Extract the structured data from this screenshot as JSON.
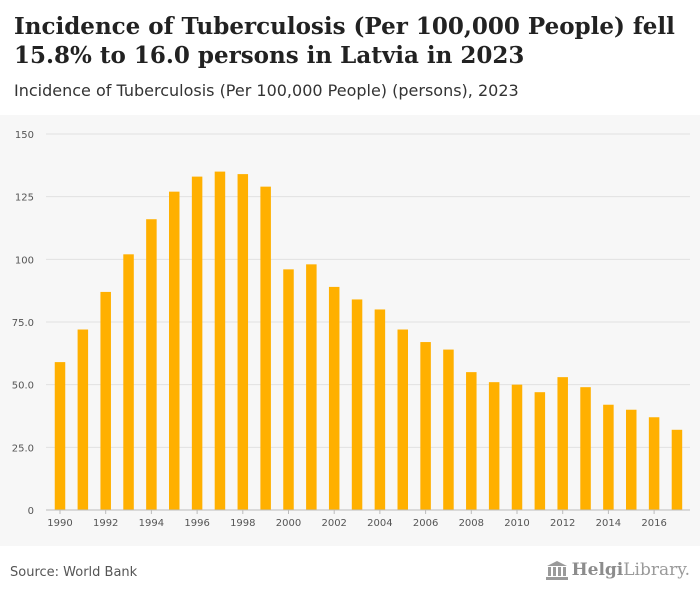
{
  "header": {
    "title": "Incidence of Tuberculosis (Per 100,000 People) fell 15.8% to 16.0 persons in Latvia in 2023",
    "subtitle": "Incidence of Tuberculosis (Per 100,000 People) (persons), 2023"
  },
  "footer": {
    "source": "Source: World Bank",
    "logo_bold": "Helgi",
    "logo_rest": "Library."
  },
  "colors": {
    "bar": "#FFB000",
    "grid": "#e2e2e2",
    "axis_text": "#555555"
  },
  "chart_data": {
    "type": "bar",
    "title": "Incidence of Tuberculosis (Per 100,000 People) fell 15.8% to 16.0 persons in Latvia in 2023",
    "subtitle": "Incidence of Tuberculosis (Per 100,000 People) (persons), 2023",
    "xlabel": "",
    "ylabel": "",
    "ylim": [
      0,
      150
    ],
    "yticks": [
      0,
      25,
      50,
      75,
      100,
      125,
      150
    ],
    "ytick_labels": [
      "0",
      "25.0",
      "50.0",
      "75.0",
      "100",
      "125",
      "150"
    ],
    "categories": [
      "1990",
      "1991",
      "1992",
      "1993",
      "1994",
      "1995",
      "1996",
      "1997",
      "1998",
      "1999",
      "2000",
      "2001",
      "2002",
      "2003",
      "2004",
      "2005",
      "2006",
      "2007",
      "2008",
      "2009",
      "2010",
      "2011",
      "2012",
      "2013",
      "2014",
      "2015",
      "2016",
      "2017"
    ],
    "xtick_labels": [
      "1990",
      "1992",
      "1994",
      "1996",
      "1998",
      "2000",
      "2002",
      "2004",
      "2006",
      "2008",
      "2010",
      "2012",
      "2014",
      "2016"
    ],
    "values": [
      59,
      72,
      87,
      102,
      116,
      127,
      133,
      135,
      134,
      129,
      96,
      98,
      89,
      84,
      80,
      72,
      67,
      64,
      55,
      51,
      50,
      47,
      53,
      49,
      42,
      40,
      37,
      32
    ],
    "grid": true,
    "legend": "none"
  }
}
